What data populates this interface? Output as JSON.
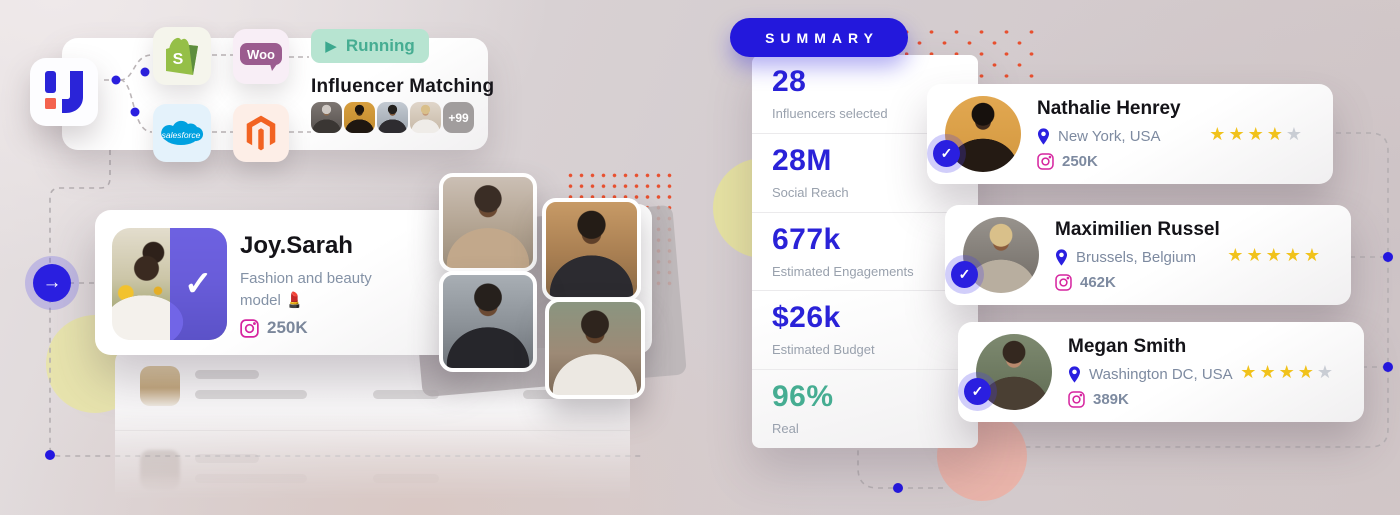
{
  "accent_colors": {
    "primary_blue": "#2a1fe0",
    "stat_blue": "#2a22d8",
    "teal": "#46ad92",
    "gold_star": "#f1c21b",
    "instagram_pink": "#d6249f",
    "dot_red": "#e8502f"
  },
  "integration_card": {
    "status": {
      "label": "Running"
    },
    "title": "Influencer Matching",
    "apps": [
      {
        "name": "Shopify",
        "glyph": "S"
      },
      {
        "name": "WooCommerce",
        "glyph": "Woo"
      },
      {
        "name": "Salesforce",
        "glyph": "salesforce"
      },
      {
        "name": "Magento",
        "glyph": ""
      }
    ],
    "avatars_overflow": "+99"
  },
  "featured_card": {
    "name": "Joy.Sarah",
    "description": "Fashion and beauty model 💄",
    "followers": "250K"
  },
  "summary_panel": {
    "title": "SUMMARY",
    "stats": [
      {
        "value": "28",
        "label": "Influencers selected",
        "color": "#2a22d8"
      },
      {
        "value": "28M",
        "label": "Social Reach",
        "color": "#2a22d8"
      },
      {
        "value": "677k",
        "label": "Estimated Engagements",
        "color": "#2a22d8"
      },
      {
        "value": "$26k",
        "label": "Estimated Budget",
        "color": "#2a22d8"
      },
      {
        "value": "96%",
        "label": "Real",
        "color": "#46ad92"
      }
    ]
  },
  "influencer_cards": [
    {
      "name": "Nathalie Henrey",
      "location": "New York, USA",
      "followers": "250K",
      "rating": 4,
      "rating_max": 5
    },
    {
      "name": "Maximilien Russel",
      "location": "Brussels, Belgium",
      "followers": "462K",
      "rating": 5,
      "rating_max": 5
    },
    {
      "name": "Megan Smith",
      "location": "Washington DC, USA",
      "followers": "389K",
      "rating": 4,
      "rating_max": 5
    }
  ],
  "icons": {
    "check": "✓",
    "arrow_right": "→",
    "play": "▶"
  }
}
